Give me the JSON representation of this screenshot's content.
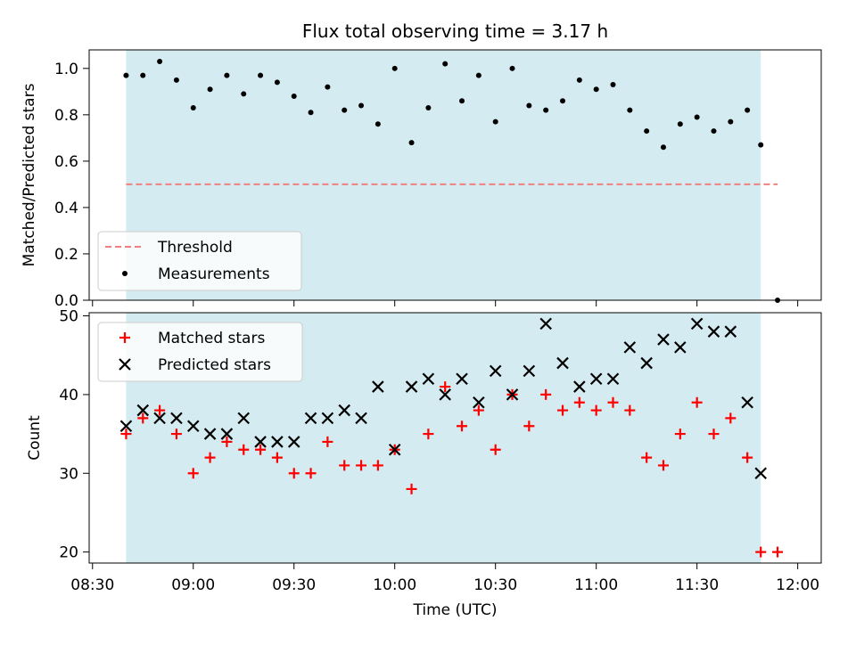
{
  "figure_title": "Flux total observing time = 3.17 h",
  "colors": {
    "shade": "#d4ebf1",
    "threshold": "#f08080",
    "measurement": "#000000",
    "matched": "#ff0000",
    "predicted": "#000000"
  },
  "chart_data": [
    {
      "type": "scatter",
      "panel": "top",
      "title": "Flux total observing time = 3.17 h",
      "xlabel": "",
      "ylabel": "Matched/Predicted stars",
      "xlim": [
        "08:29",
        "12:07"
      ],
      "ylim": [
        0,
        1.08
      ],
      "yticks": [
        "0.0",
        "0.2",
        "0.4",
        "0.6",
        "0.8",
        "1.0"
      ],
      "legend_placement": "lower-left",
      "shaded_span": [
        "08:40",
        "11:49"
      ],
      "threshold": {
        "name": "Threshold",
        "y": 0.5,
        "x": [
          "08:40",
          "11:54"
        ]
      },
      "series": [
        {
          "name": "Measurements",
          "marker": "dot",
          "x": [
            "08:40",
            "08:45",
            "08:50",
            "08:55",
            "09:00",
            "09:05",
            "09:10",
            "09:15",
            "09:20",
            "09:25",
            "09:30",
            "09:35",
            "09:40",
            "09:45",
            "09:50",
            "09:55",
            "10:00",
            "10:05",
            "10:10",
            "10:15",
            "10:20",
            "10:25",
            "10:30",
            "10:35",
            "10:40",
            "10:45",
            "10:50",
            "10:55",
            "11:00",
            "11:05",
            "11:10",
            "11:15",
            "11:20",
            "11:25",
            "11:30",
            "11:35",
            "11:40",
            "11:45",
            "11:49",
            "11:54"
          ],
          "values": [
            0.97,
            0.97,
            1.03,
            0.95,
            0.83,
            0.91,
            0.97,
            0.89,
            0.97,
            0.94,
            0.88,
            0.81,
            0.92,
            0.82,
            0.84,
            0.76,
            1.0,
            0.68,
            0.83,
            1.02,
            0.86,
            0.97,
            0.77,
            1.0,
            0.84,
            0.82,
            0.86,
            0.95,
            0.91,
            0.93,
            0.82,
            0.73,
            0.66,
            0.76,
            0.79,
            0.73,
            0.77,
            0.82,
            0.67,
            0.0
          ]
        }
      ]
    },
    {
      "type": "scatter",
      "panel": "bottom",
      "xlabel": "Time (UTC)",
      "ylabel": "Count",
      "xlim": [
        "08:29",
        "12:07"
      ],
      "ylim": [
        18.6,
        50.4
      ],
      "yticks": [
        "20",
        "30",
        "40",
        "50"
      ],
      "xticks": [
        "08:30",
        "09:00",
        "09:30",
        "10:00",
        "10:30",
        "11:00",
        "11:30",
        "12:00"
      ],
      "legend_placement": "upper-left",
      "shaded_span": [
        "08:40",
        "11:49"
      ],
      "series": [
        {
          "name": "Matched stars",
          "marker": "plus",
          "x": [
            "08:40",
            "08:45",
            "08:50",
            "08:55",
            "09:00",
            "09:05",
            "09:10",
            "09:15",
            "09:20",
            "09:25",
            "09:30",
            "09:35",
            "09:40",
            "09:45",
            "09:50",
            "09:55",
            "10:00",
            "10:05",
            "10:10",
            "10:15",
            "10:20",
            "10:25",
            "10:30",
            "10:35",
            "10:40",
            "10:45",
            "10:50",
            "10:55",
            "11:00",
            "11:05",
            "11:10",
            "11:15",
            "11:20",
            "11:25",
            "11:30",
            "11:35",
            "11:40",
            "11:45",
            "11:49",
            "11:54"
          ],
          "values": [
            35,
            37,
            38,
            35,
            30,
            32,
            34,
            33,
            33,
            32,
            30,
            30,
            34,
            31,
            31,
            31,
            33,
            28,
            35,
            41,
            36,
            38,
            33,
            40,
            36,
            40,
            38,
            39,
            38,
            39,
            38,
            32,
            31,
            35,
            39,
            35,
            37,
            32,
            20,
            20
          ]
        },
        {
          "name": "Predicted stars",
          "marker": "x",
          "x": [
            "08:40",
            "08:45",
            "08:50",
            "08:55",
            "09:00",
            "09:05",
            "09:10",
            "09:15",
            "09:20",
            "09:25",
            "09:30",
            "09:35",
            "09:40",
            "09:45",
            "09:50",
            "09:55",
            "10:00",
            "10:05",
            "10:10",
            "10:15",
            "10:20",
            "10:25",
            "10:30",
            "10:35",
            "10:40",
            "10:45",
            "10:50",
            "10:55",
            "11:00",
            "11:05",
            "11:10",
            "11:15",
            "11:20",
            "11:25",
            "11:30",
            "11:35",
            "11:40",
            "11:45",
            "11:49"
          ],
          "values": [
            36,
            38,
            37,
            37,
            36,
            35,
            35,
            37,
            34,
            34,
            34,
            37,
            37,
            38,
            37,
            41,
            33,
            41,
            42,
            40,
            42,
            39,
            43,
            40,
            43,
            49,
            44,
            41,
            42,
            42,
            46,
            44,
            47,
            46,
            49,
            48,
            48,
            39,
            30
          ]
        }
      ]
    }
  ]
}
